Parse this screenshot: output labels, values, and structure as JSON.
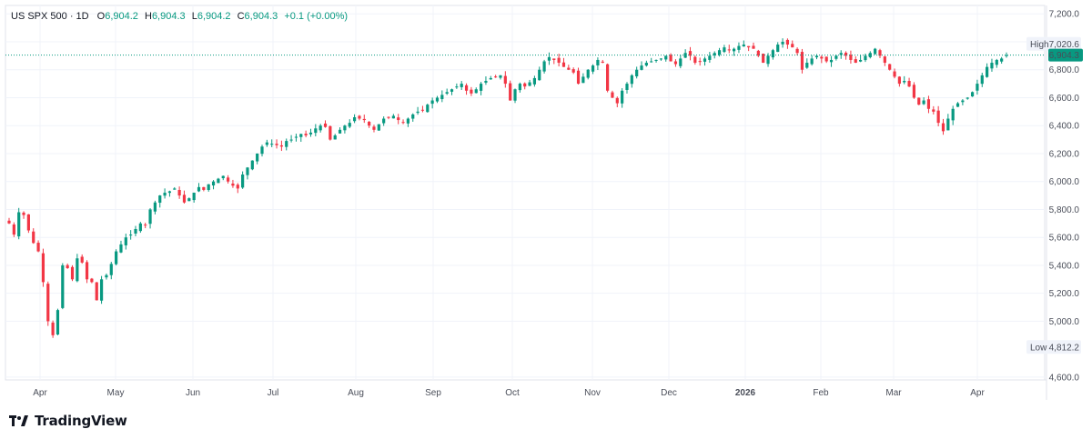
{
  "header": {
    "symbol": "US SPX 500 · 1D",
    "o_label": "O",
    "o_value": "6,904.2",
    "h_label": "H",
    "h_value": "6,904.3",
    "l_label": "L",
    "l_value": "6,904.2",
    "c_label": "C",
    "c_value": "6,904.3",
    "change": "+0.1 (+0.00%)"
  },
  "brand": {
    "name": "TradingView"
  },
  "badges": {
    "high_label": "High",
    "high_value": "7,020.6",
    "low_label": "Low",
    "low_value": "4,812.2",
    "last_value": "6,904.3"
  },
  "colors": {
    "up": "#089981",
    "down": "#f23645",
    "grid": "#f0f3fa",
    "text": "#4a4e59"
  },
  "chart_data": {
    "type": "candlestick",
    "y_ticks": [
      "7,200.0",
      "7,000.0",
      "6,800.0",
      "6,600.0",
      "6,400.0",
      "6,200.0",
      "6,000.0",
      "5,800.0",
      "5,600.0",
      "5,400.0",
      "5,200.0",
      "5,000.0",
      "4,600.0"
    ],
    "ylim": [
      4580,
      7260
    ],
    "x_months": [
      "Apr",
      "May",
      "Jun",
      "Jul",
      "Aug",
      "Sep",
      "Oct",
      "Nov",
      "Dec",
      "2026",
      "Feb",
      "Mar",
      "Apr"
    ],
    "last_price": 6904.3,
    "high": 7020.6,
    "low": 4812.2,
    "closes": [
      5700,
      5620,
      5780,
      5760,
      5650,
      5560,
      5500,
      5280,
      5000,
      4900,
      5080,
      5400,
      5380,
      5300,
      5450,
      5420,
      5300,
      5280,
      5150,
      5300,
      5330,
      5410,
      5500,
      5550,
      5600,
      5620,
      5660,
      5700,
      5690,
      5800,
      5850,
      5900,
      5920,
      5930,
      5950,
      5900,
      5850,
      5880,
      5920,
      5960,
      5940,
      5980,
      6000,
      6020,
      6040,
      6000,
      5970,
      5950,
      6050,
      6100,
      6150,
      6200,
      6250,
      6280,
      6270,
      6260,
      6250,
      6290,
      6300,
      6320,
      6340,
      6330,
      6350,
      6380,
      6400,
      6390,
      6300,
      6330,
      6370,
      6400,
      6420,
      6460,
      6450,
      6440,
      6400,
      6370,
      6410,
      6450,
      6460,
      6470,
      6440,
      6420,
      6450,
      6480,
      6500,
      6510,
      6550,
      6580,
      6600,
      6620,
      6640,
      6660,
      6680,
      6700,
      6650,
      6630,
      6660,
      6700,
      6720,
      6740,
      6750,
      6760,
      6700,
      6580,
      6660,
      6700,
      6680,
      6710,
      6740,
      6800,
      6860,
      6890,
      6870,
      6850,
      6820,
      6800,
      6780,
      6700,
      6750,
      6800,
      6830,
      6870,
      6850,
      6650,
      6600,
      6560,
      6650,
      6700,
      6760,
      6800,
      6830,
      6850,
      6860,
      6870,
      6880,
      6900,
      6860,
      6840,
      6880,
      6920,
      6900,
      6850,
      6860,
      6880,
      6900,
      6920,
      6940,
      6960,
      6940,
      6950,
      6970,
      6980,
      6960,
      6950,
      6900,
      6850,
      6900,
      6940,
      6980,
      7000,
      6980,
      6960,
      6920,
      6800,
      6850,
      6880,
      6900,
      6880,
      6860,
      6870,
      6900,
      6920,
      6900,
      6870,
      6850,
      6870,
      6900,
      6920,
      6950,
      6900,
      6850,
      6800,
      6750,
      6700,
      6720,
      6680,
      6600,
      6550,
      6580,
      6520,
      6500,
      6420,
      6360,
      6450,
      6520,
      6560,
      6580,
      6600,
      6640,
      6700,
      6760,
      6820,
      6850,
      6870,
      6880,
      6904.3
    ],
    "wicks": {
      "note": "per-candle open/high/low generated from closes with seeded variation"
    }
  }
}
